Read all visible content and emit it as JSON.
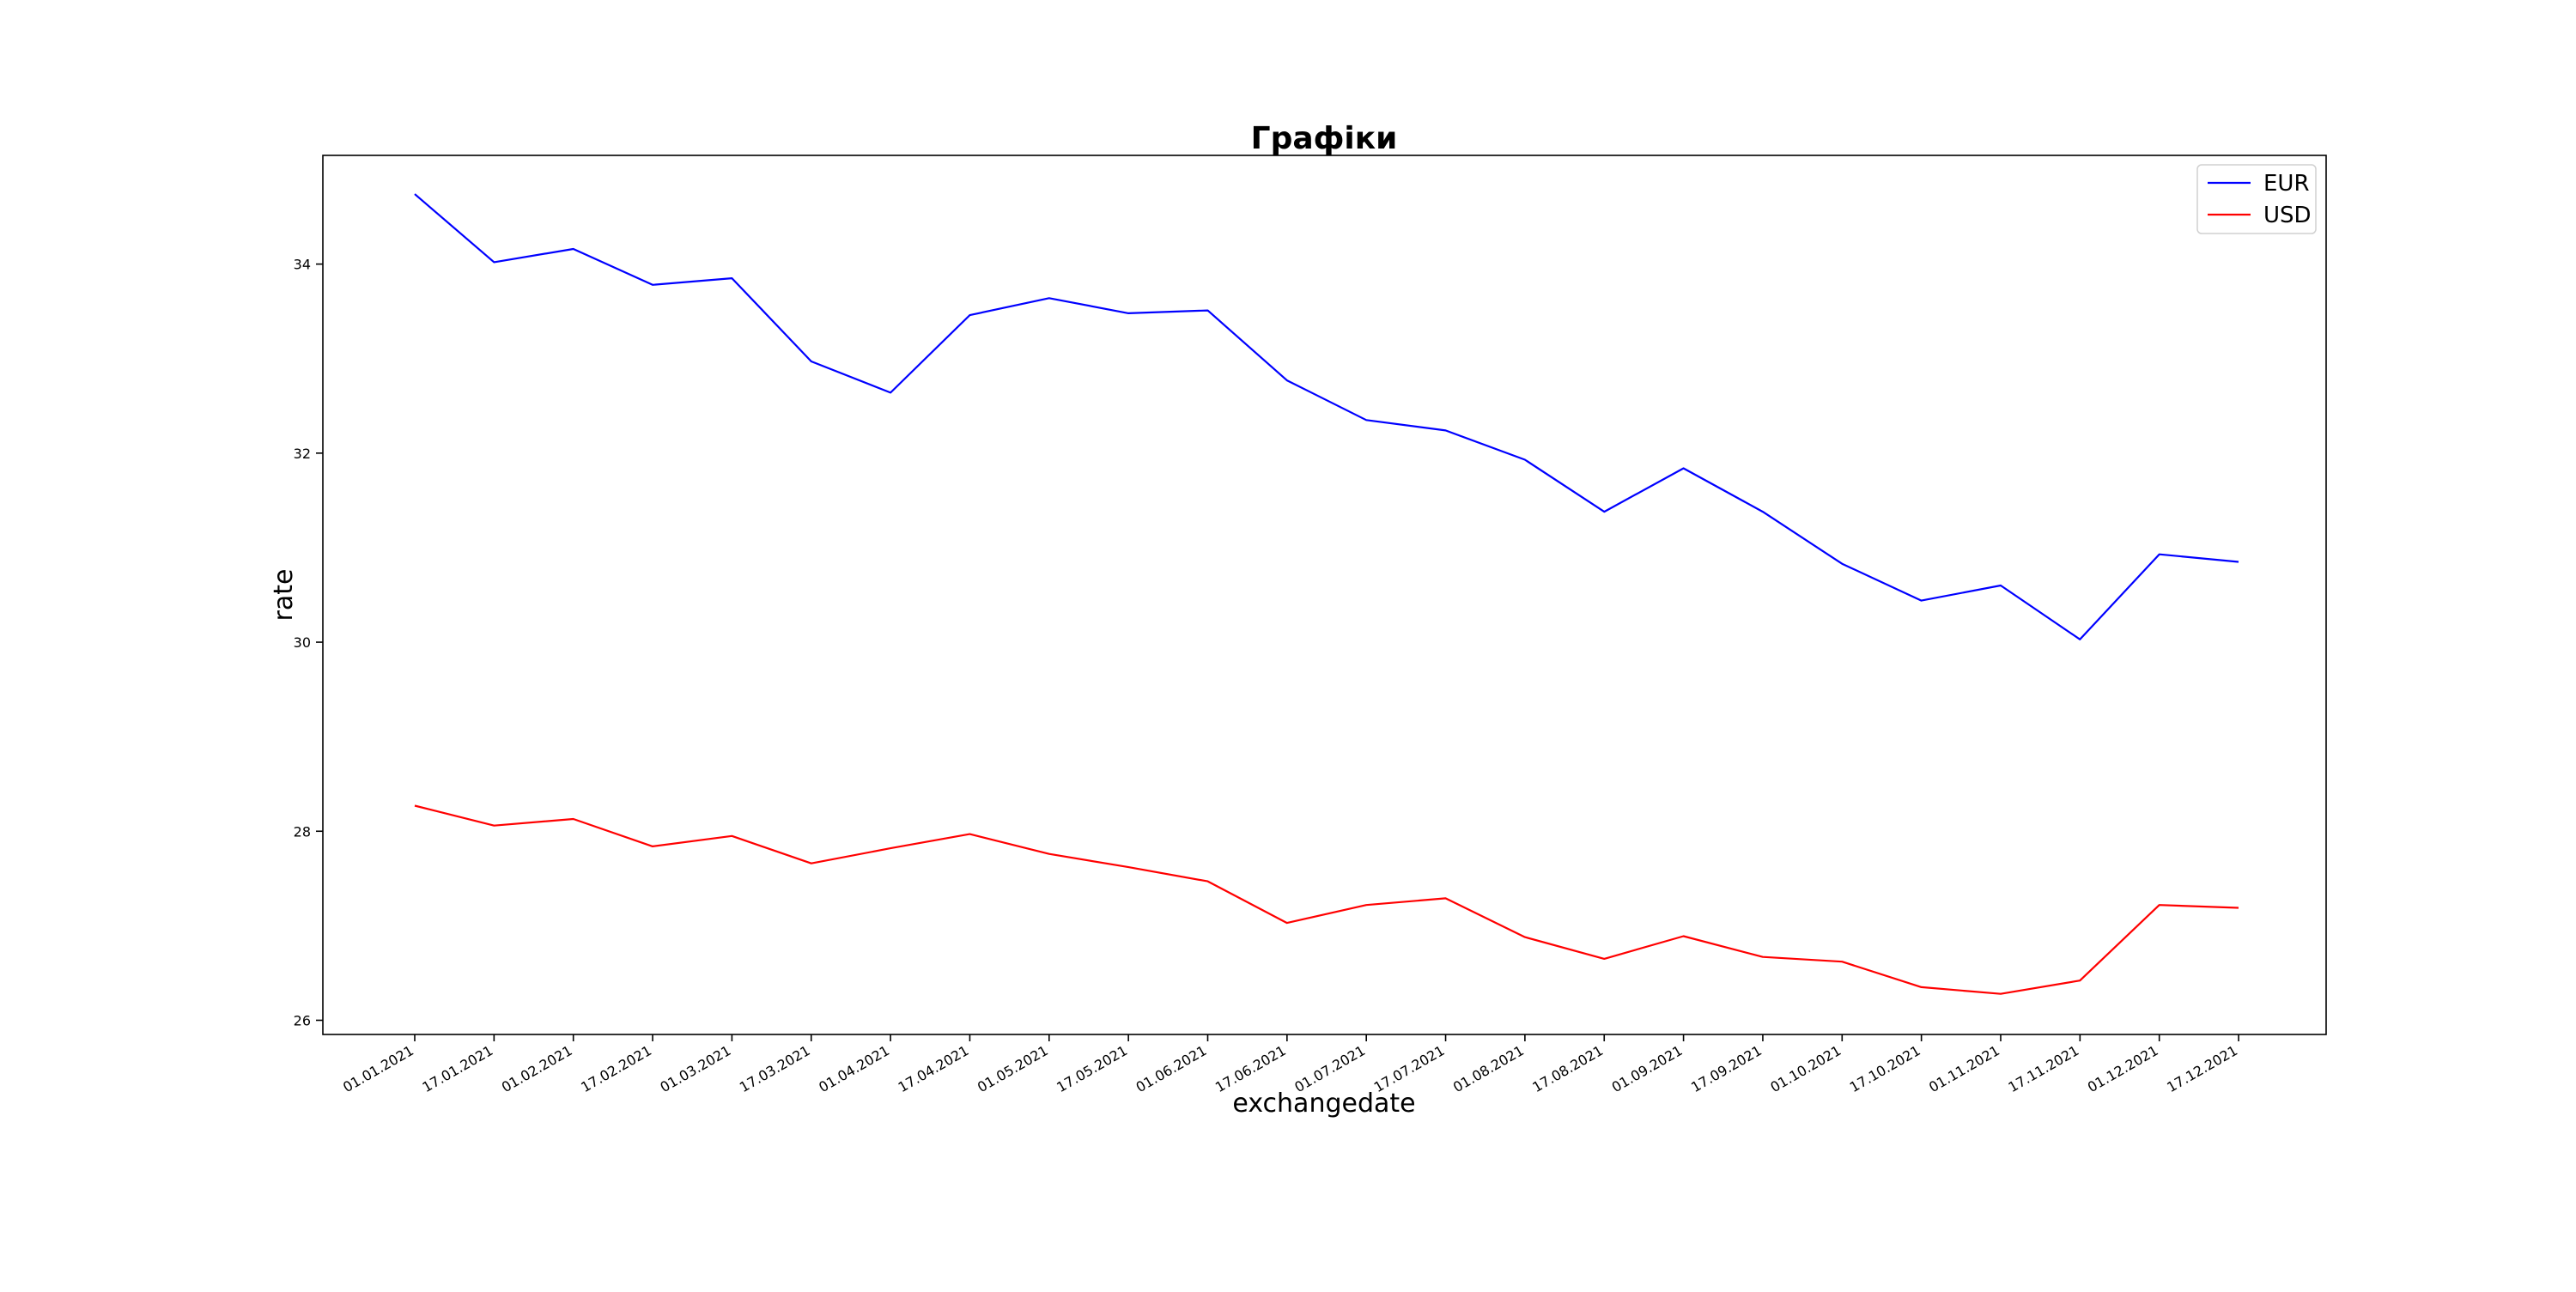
{
  "chart_data": {
    "type": "line",
    "title": "Графіки",
    "title_color": "#008000",
    "xlabel": "exchangedate",
    "ylabel": "rate",
    "categories": [
      "01.01.2021",
      "17.01.2021",
      "01.02.2021",
      "17.02.2021",
      "01.03.2021",
      "17.03.2021",
      "01.04.2021",
      "17.04.2021",
      "01.05.2021",
      "17.05.2021",
      "01.06.2021",
      "17.06.2021",
      "01.07.2021",
      "17.07.2021",
      "01.08.2021",
      "17.08.2021",
      "01.09.2021",
      "17.09.2021",
      "01.10.2021",
      "17.10.2021",
      "01.11.2021",
      "17.11.2021",
      "01.12.2021",
      "17.12.2021"
    ],
    "series": [
      {
        "name": "EUR",
        "color": "#0000ff",
        "values": [
          34.74,
          34.02,
          34.16,
          33.78,
          33.85,
          32.97,
          32.64,
          33.46,
          33.64,
          33.48,
          33.51,
          32.77,
          32.35,
          32.24,
          31.93,
          31.38,
          31.84,
          31.38,
          30.83,
          30.44,
          30.6,
          30.03,
          30.93,
          30.85
        ]
      },
      {
        "name": "USD",
        "color": "#ff0000",
        "values": [
          28.27,
          28.06,
          28.13,
          27.84,
          27.95,
          27.66,
          27.82,
          27.97,
          27.76,
          27.62,
          27.47,
          27.03,
          27.22,
          27.29,
          26.88,
          26.65,
          26.89,
          26.67,
          26.62,
          26.35,
          26.28,
          26.42,
          27.22,
          27.19
        ]
      }
    ],
    "yticks": [
      26,
      28,
      30,
      32,
      34
    ],
    "ylim": [
      25.85,
      35.15
    ],
    "grid": false,
    "legend_position": "top-right"
  }
}
